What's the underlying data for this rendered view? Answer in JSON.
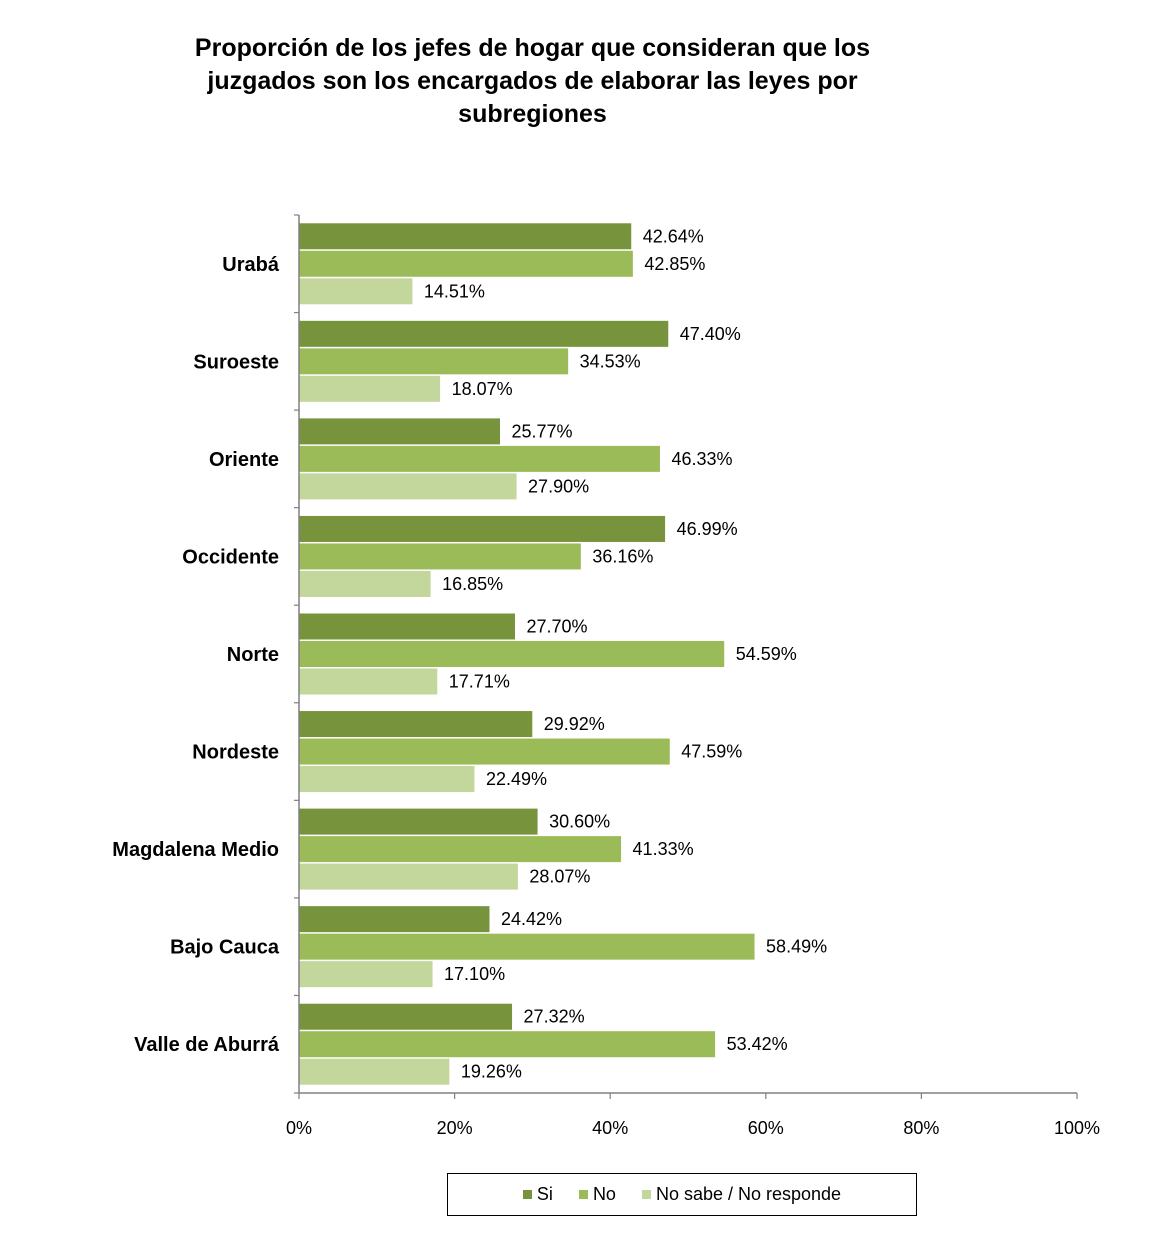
{
  "chart_data": {
    "type": "bar",
    "orientation": "horizontal",
    "title": "Proporción de los jefes de hogar que  consideran  que los\njuzgados son los encargados de elaborar  las leyes por\nsubregiones",
    "categories": [
      "Urabá",
      "Suroeste",
      "Oriente",
      "Occidente",
      "Norte",
      "Nordeste",
      "Magdalena Medio",
      "Bajo Cauca",
      "Valle de Aburrá"
    ],
    "series": [
      {
        "name": "Si",
        "color": "#77933C",
        "values": [
          42.64,
          47.4,
          25.77,
          46.99,
          27.7,
          29.92,
          30.6,
          24.42,
          27.32
        ],
        "labels": [
          "42.64%",
          "47.40%",
          "25.77%",
          "46.99%",
          "27.70%",
          "29.92%",
          "30.60%",
          "24.42%",
          "27.32%"
        ]
      },
      {
        "name": "No",
        "color": "#9BBB59",
        "values": [
          42.85,
          34.53,
          46.33,
          36.16,
          54.59,
          47.59,
          41.33,
          58.49,
          53.42
        ],
        "labels": [
          "42.85%",
          "34.53%",
          "46.33%",
          "36.16%",
          "54.59%",
          "47.59%",
          "41.33%",
          "58.49%",
          "53.42%"
        ]
      },
      {
        "name": "No sabe / No responde",
        "color": "#C3D69B",
        "values": [
          14.51,
          18.07,
          27.9,
          16.85,
          17.71,
          22.49,
          28.07,
          17.1,
          19.26
        ],
        "labels": [
          "14.51%",
          "18.07%",
          "27.90%",
          "16.85%",
          "17.71%",
          "22.49%",
          "28.07%",
          "17.10%",
          "19.26%"
        ]
      }
    ],
    "xlim": [
      0,
      100
    ],
    "xticks": [
      "0%",
      "20%",
      "40%",
      "60%",
      "80%",
      "100%"
    ],
    "grid": false,
    "legend_position": "bottom"
  }
}
